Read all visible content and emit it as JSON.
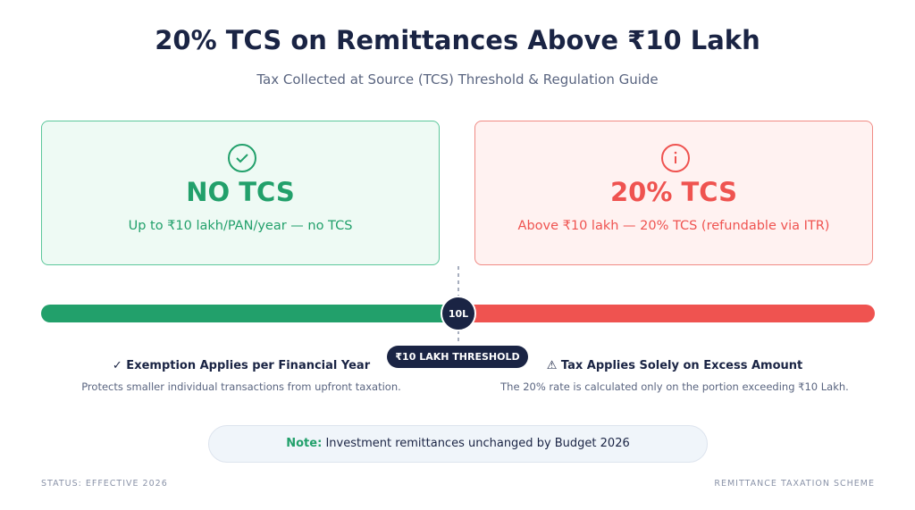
{
  "header": {
    "title": "20% TCS on Remittances Above ₹10 Lakh",
    "subtitle": "Tax Collected at Source (TCS) Threshold & Regulation Guide"
  },
  "cards": [
    {
      "title": "NO TCS",
      "text": "Up to ₹10 lakh/PAN/year — no TCS"
    },
    {
      "title": "20% TCS",
      "text": "Above ₹10 lakh — 20% TCS (refundable via ITR)"
    }
  ],
  "scale": {
    "marker": "10L",
    "threshold": "₹10 LAKH THRESHOLD"
  },
  "points": [
    {
      "heading": "✓ Exemption Applies per Financial Year",
      "text": "Protects smaller individual transactions from upfront taxation."
    },
    {
      "heading": "⚠ Tax Applies Solely on Excess Amount",
      "text": "The 20% rate is calculated only on the portion exceeding ₹10 Lakh."
    }
  ],
  "note": {
    "label": "Note:",
    "text": "Investment remittances unchanged by Budget 2026"
  },
  "footer": {
    "left": "STATUS: EFFECTIVE 2026",
    "right": "REMITTANCE TAXATION SCHEME"
  }
}
